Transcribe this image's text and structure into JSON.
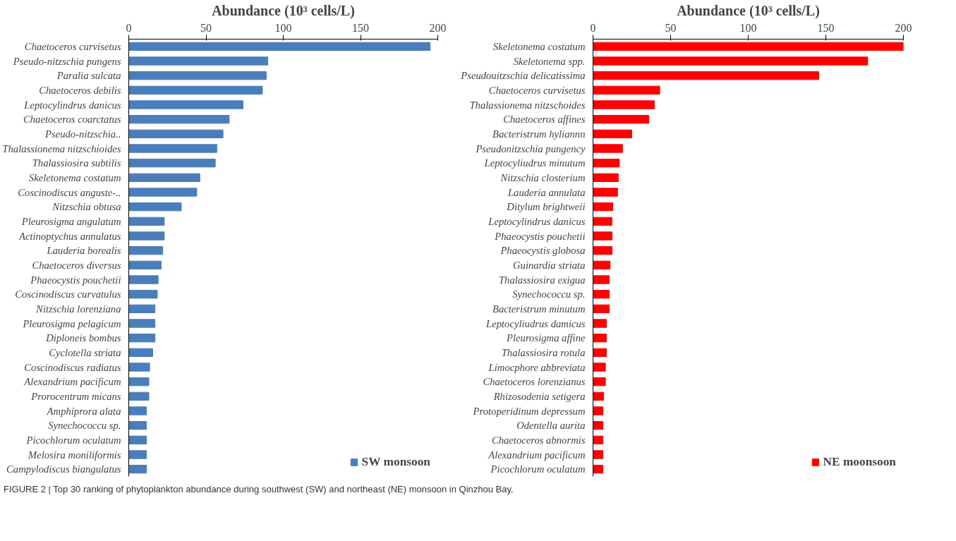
{
  "chart_data": [
    {
      "type": "bar",
      "orientation": "horizontal",
      "xlabel": "Abundance (10³ cells/L)",
      "xlim": [
        0,
        200
      ],
      "xticks": [
        0,
        50,
        100,
        150,
        200
      ],
      "grid": false,
      "legend": "bottom right",
      "categories": [
        "Chaetoceros curvisetus",
        "Pseudo-nitzschia pungens",
        "Paralia sulcata",
        "Chaetoceros debilis",
        "Leptocylindrus danicus",
        "Chaetoceros coarctatus",
        "Pseudo-nitzschia..",
        "Thalassionema nitzschioides",
        "Thalassiosira subtilis",
        "Skeletonema costatum",
        "Coscinodiscus anguste-..",
        "Nitzschia obtusa",
        "Pleurosigma angulatum",
        "Actinoptychus annulatus",
        "Lauderia borealis",
        "Chaetoceros diversus",
        "Phaeocystis pouchetii",
        "Coscinodiscus curvatulus",
        "Nitzschia lorenziana",
        "Pleurosigma pelagicum",
        "Diploneis bombus",
        "Cyclotella striata",
        "Coscinodiscus radiatus",
        "Alexandrium pacificum",
        "Prorocentrum micans",
        "Amphiprora alata",
        "Synechococcu sp.",
        "Picochlorum oculatum",
        "Melosira moniliformis",
        "Campylodiscus biangulatus"
      ],
      "series": [
        {
          "name": "SW monsoon",
          "color": "#4a7ebb",
          "values": [
            195,
            90,
            89,
            86.5,
            74,
            65,
            61,
            57,
            56,
            46,
            44,
            34,
            23,
            23,
            22,
            21,
            19,
            18.5,
            17,
            17,
            17,
            15.5,
            13.5,
            13,
            13,
            11.5,
            11.5,
            11.5,
            11.5,
            11.5
          ]
        }
      ],
      "annotations": [
        "FIGURE 2 | Top 30 ranking of phytoplankton abundance during southwest (SW) and northeast (NE) monsoon in Qinzhou Bay."
      ]
    },
    {
      "type": "bar",
      "orientation": "horizontal",
      "xlabel": "Abundance (10³ cells/L)",
      "xlim": [
        0,
        200
      ],
      "xticks": [
        0,
        50,
        100,
        150,
        200
      ],
      "grid": false,
      "legend": "bottom right",
      "categories": [
        "Skeletonema costatum",
        "Skeletonema spp.",
        "Pseudouitzschia delicatissima",
        "Chaetoceros curvisetus",
        "Thalassionema nitzschoides",
        "Chaetoceros affines",
        "Bacteristrum hyliannn",
        "Pseudonitzschia pungency",
        "Leptocyliudrus minutum",
        "Nitzschia closterium",
        "Lauderia annulata",
        "Ditylum brightweii",
        "Leptocylindrus danicus",
        "Phaeocystis pouchetii",
        "Phaeocystis globosa",
        "Guinardia striata",
        "Thalassiosira exigua",
        "Synechococcu sp.",
        "Bacteristrum minutum",
        "Leptocyliudrus damicus",
        "Pleurosigma affine",
        "Thalassiosira rotula",
        "Limocphore abbreviata",
        "Chaetoceros lorenzianus",
        "Rhizosodenia setigera",
        "Protoperidinum depressum",
        "Odentella aurita",
        "Chaetoceros abnormis",
        "Alexandrium pacificum",
        "Picochlorum oculatum"
      ],
      "series": [
        {
          "name": "NE moonsoon",
          "color": "#ff0000",
          "values": [
            200,
            177,
            145.5,
            43,
            39.5,
            36,
            25,
            19,
            17,
            16.3,
            15.8,
            12.7,
            12.2,
            12.3,
            12.3,
            11,
            10.5,
            10.5,
            10.5,
            8.7,
            8.7,
            8.7,
            8,
            8,
            6.9,
            6.4,
            6.4,
            6.4,
            6.4,
            6.4
          ]
        }
      ]
    }
  ]
}
